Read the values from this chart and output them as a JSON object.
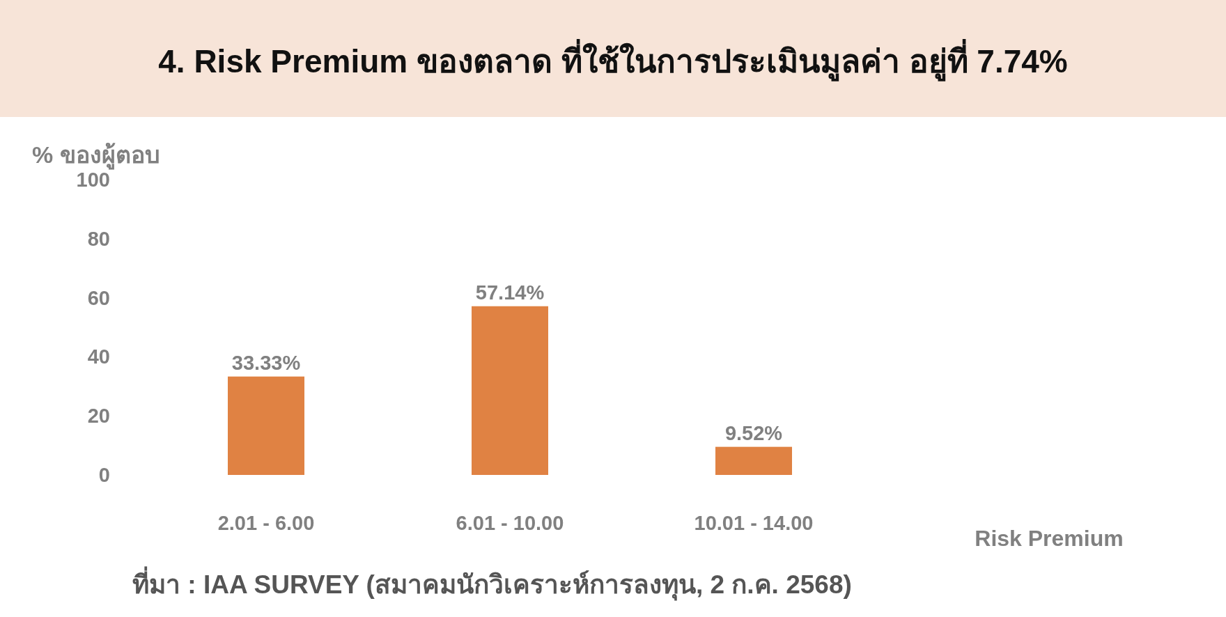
{
  "chart_data": {
    "type": "bar",
    "title": "4. Risk Premium ของตลาด ที่ใช้ในการประเมินมูลค่า อยู่ที่ 7.74%",
    "ylabel": "% ของผู้ตอบ",
    "xlabel": "Risk Premium",
    "categories": [
      "2.01 - 6.00",
      "6.01 - 10.00",
      "10.01 - 14.00"
    ],
    "values": [
      33.33,
      57.14,
      9.52
    ],
    "value_labels": [
      "33.33%",
      "57.14%",
      "9.52%"
    ],
    "color": "#e08243",
    "ylim": [
      0,
      100
    ],
    "yticks": [
      0,
      20,
      40,
      60,
      80,
      100
    ],
    "annotations": [
      "ที่มา : IAA SURVEY (สมาคมนักวิเคราะห์การลงทุน, 2 ก.ค. 2568)"
    ]
  }
}
